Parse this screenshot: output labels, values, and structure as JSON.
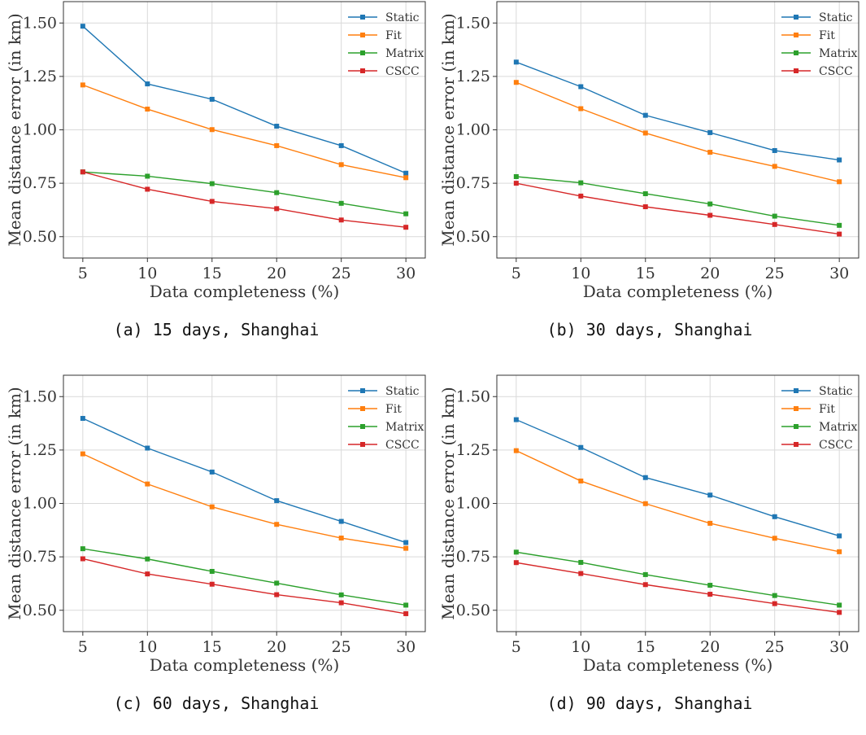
{
  "chart_data": [
    {
      "type": "line",
      "caption": "(a) 15 days, Shanghai",
      "xlabel": "Data completeness (%)",
      "ylabel": "Mean distance error (in km)",
      "x": [
        5,
        10,
        15,
        20,
        25,
        30
      ],
      "xlim": [
        3.5,
        31.5
      ],
      "ylim": [
        0.4,
        1.6
      ],
      "xticks": [
        "5",
        "10",
        "15",
        "20",
        "25",
        "30"
      ],
      "yticks": [
        "0.50",
        "0.75",
        "1.00",
        "1.25",
        "1.50"
      ],
      "grid": true,
      "legend": "top-right",
      "series": [
        {
          "name": "Static",
          "color": "#1f77b4",
          "values": [
            1.485,
            1.215,
            1.143,
            1.017,
            0.926,
            0.797
          ]
        },
        {
          "name": "Fit",
          "color": "#ff7f0e",
          "values": [
            1.21,
            1.097,
            1.001,
            0.926,
            0.837,
            0.776
          ]
        },
        {
          "name": "Matrix",
          "color": "#2ca02c",
          "values": [
            0.803,
            0.783,
            0.748,
            0.706,
            0.656,
            0.607
          ]
        },
        {
          "name": "CSCC",
          "color": "#d62728",
          "values": [
            0.803,
            0.722,
            0.665,
            0.631,
            0.578,
            0.544
          ]
        }
      ]
    },
    {
      "type": "line",
      "caption": "(b) 30 days, Shanghai",
      "xlabel": "Data completeness (%)",
      "ylabel": "Mean distance error (in km)",
      "x": [
        5,
        10,
        15,
        20,
        25,
        30
      ],
      "xlim": [
        3.5,
        31.5
      ],
      "ylim": [
        0.4,
        1.6
      ],
      "xticks": [
        "5",
        "10",
        "15",
        "20",
        "25",
        "30"
      ],
      "yticks": [
        "0.50",
        "0.75",
        "1.00",
        "1.25",
        "1.50"
      ],
      "grid": true,
      "legend": "top-right",
      "series": [
        {
          "name": "Static",
          "color": "#1f77b4",
          "values": [
            1.317,
            1.202,
            1.068,
            0.987,
            0.903,
            0.859
          ]
        },
        {
          "name": "Fit",
          "color": "#ff7f0e",
          "values": [
            1.222,
            1.099,
            0.985,
            0.895,
            0.829,
            0.757
          ]
        },
        {
          "name": "Matrix",
          "color": "#2ca02c",
          "values": [
            0.781,
            0.752,
            0.701,
            0.653,
            0.596,
            0.553
          ]
        },
        {
          "name": "CSCC",
          "color": "#d62728",
          "values": [
            0.75,
            0.69,
            0.64,
            0.6,
            0.557,
            0.512
          ]
        }
      ]
    },
    {
      "type": "line",
      "caption": "(c) 60 days, Shanghai",
      "xlabel": "Data completeness (%)",
      "ylabel": "Mean distance error (in km)",
      "x": [
        5,
        10,
        15,
        20,
        25,
        30
      ],
      "xlim": [
        3.5,
        31.5
      ],
      "ylim": [
        0.4,
        1.6
      ],
      "xticks": [
        "5",
        "10",
        "15",
        "20",
        "25",
        "30"
      ],
      "yticks": [
        "0.50",
        "0.75",
        "1.00",
        "1.25",
        "1.50"
      ],
      "grid": true,
      "legend": "top-right",
      "series": [
        {
          "name": "Static",
          "color": "#1f77b4",
          "values": [
            1.398,
            1.259,
            1.147,
            1.013,
            0.916,
            0.817
          ]
        },
        {
          "name": "Fit",
          "color": "#ff7f0e",
          "values": [
            1.232,
            1.091,
            0.984,
            0.902,
            0.838,
            0.79
          ]
        },
        {
          "name": "Matrix",
          "color": "#2ca02c",
          "values": [
            0.788,
            0.74,
            0.682,
            0.627,
            0.572,
            0.524
          ]
        },
        {
          "name": "CSCC",
          "color": "#d62728",
          "values": [
            0.741,
            0.67,
            0.622,
            0.573,
            0.535,
            0.484
          ]
        }
      ]
    },
    {
      "type": "line",
      "caption": "(d) 90 days, Shanghai",
      "xlabel": "Data completeness (%)",
      "ylabel": "Mean distance error (in km)",
      "x": [
        5,
        10,
        15,
        20,
        25,
        30
      ],
      "xlim": [
        3.5,
        31.5
      ],
      "ylim": [
        0.4,
        1.6
      ],
      "xticks": [
        "5",
        "10",
        "15",
        "20",
        "25",
        "30"
      ],
      "yticks": [
        "0.50",
        "0.75",
        "1.00",
        "1.25",
        "1.50"
      ],
      "grid": true,
      "legend": "top-right",
      "series": [
        {
          "name": "Static",
          "color": "#1f77b4",
          "values": [
            1.392,
            1.262,
            1.121,
            1.039,
            0.938,
            0.848
          ]
        },
        {
          "name": "Fit",
          "color": "#ff7f0e",
          "values": [
            1.247,
            1.105,
            0.999,
            0.907,
            0.837,
            0.774
          ]
        },
        {
          "name": "Matrix",
          "color": "#2ca02c",
          "values": [
            0.772,
            0.724,
            0.667,
            0.617,
            0.569,
            0.524
          ]
        },
        {
          "name": "CSCC",
          "color": "#d62728",
          "values": [
            0.723,
            0.672,
            0.62,
            0.575,
            0.531,
            0.49
          ]
        }
      ]
    }
  ]
}
